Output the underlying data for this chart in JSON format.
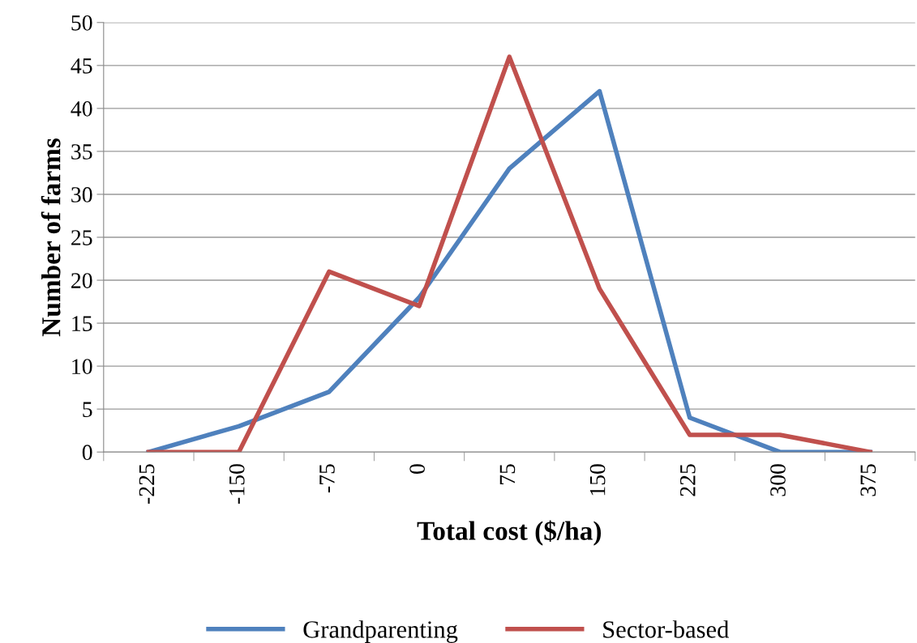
{
  "chart_data": {
    "type": "line",
    "xlabel": "Total cost ($/ha)",
    "ylabel": "Number of farms",
    "categories": [
      "-225",
      "-150",
      "-75",
      "0",
      "75",
      "150",
      "225",
      "300",
      "375"
    ],
    "series": [
      {
        "name": "Grandparenting",
        "color": "#4f81bd",
        "values": [
          0,
          3,
          7,
          18,
          33,
          42,
          4,
          0,
          0
        ]
      },
      {
        "name": "Sector-based",
        "color": "#c0504d",
        "values": [
          0,
          0,
          21,
          17,
          46,
          19,
          2,
          2,
          0
        ]
      }
    ],
    "ylim": [
      0,
      50
    ],
    "yticks": [
      0,
      5,
      10,
      15,
      20,
      25,
      30,
      35,
      40,
      45,
      50
    ],
    "grid": "y",
    "legend": "bottom",
    "marker": "none",
    "line_style": "solid"
  }
}
